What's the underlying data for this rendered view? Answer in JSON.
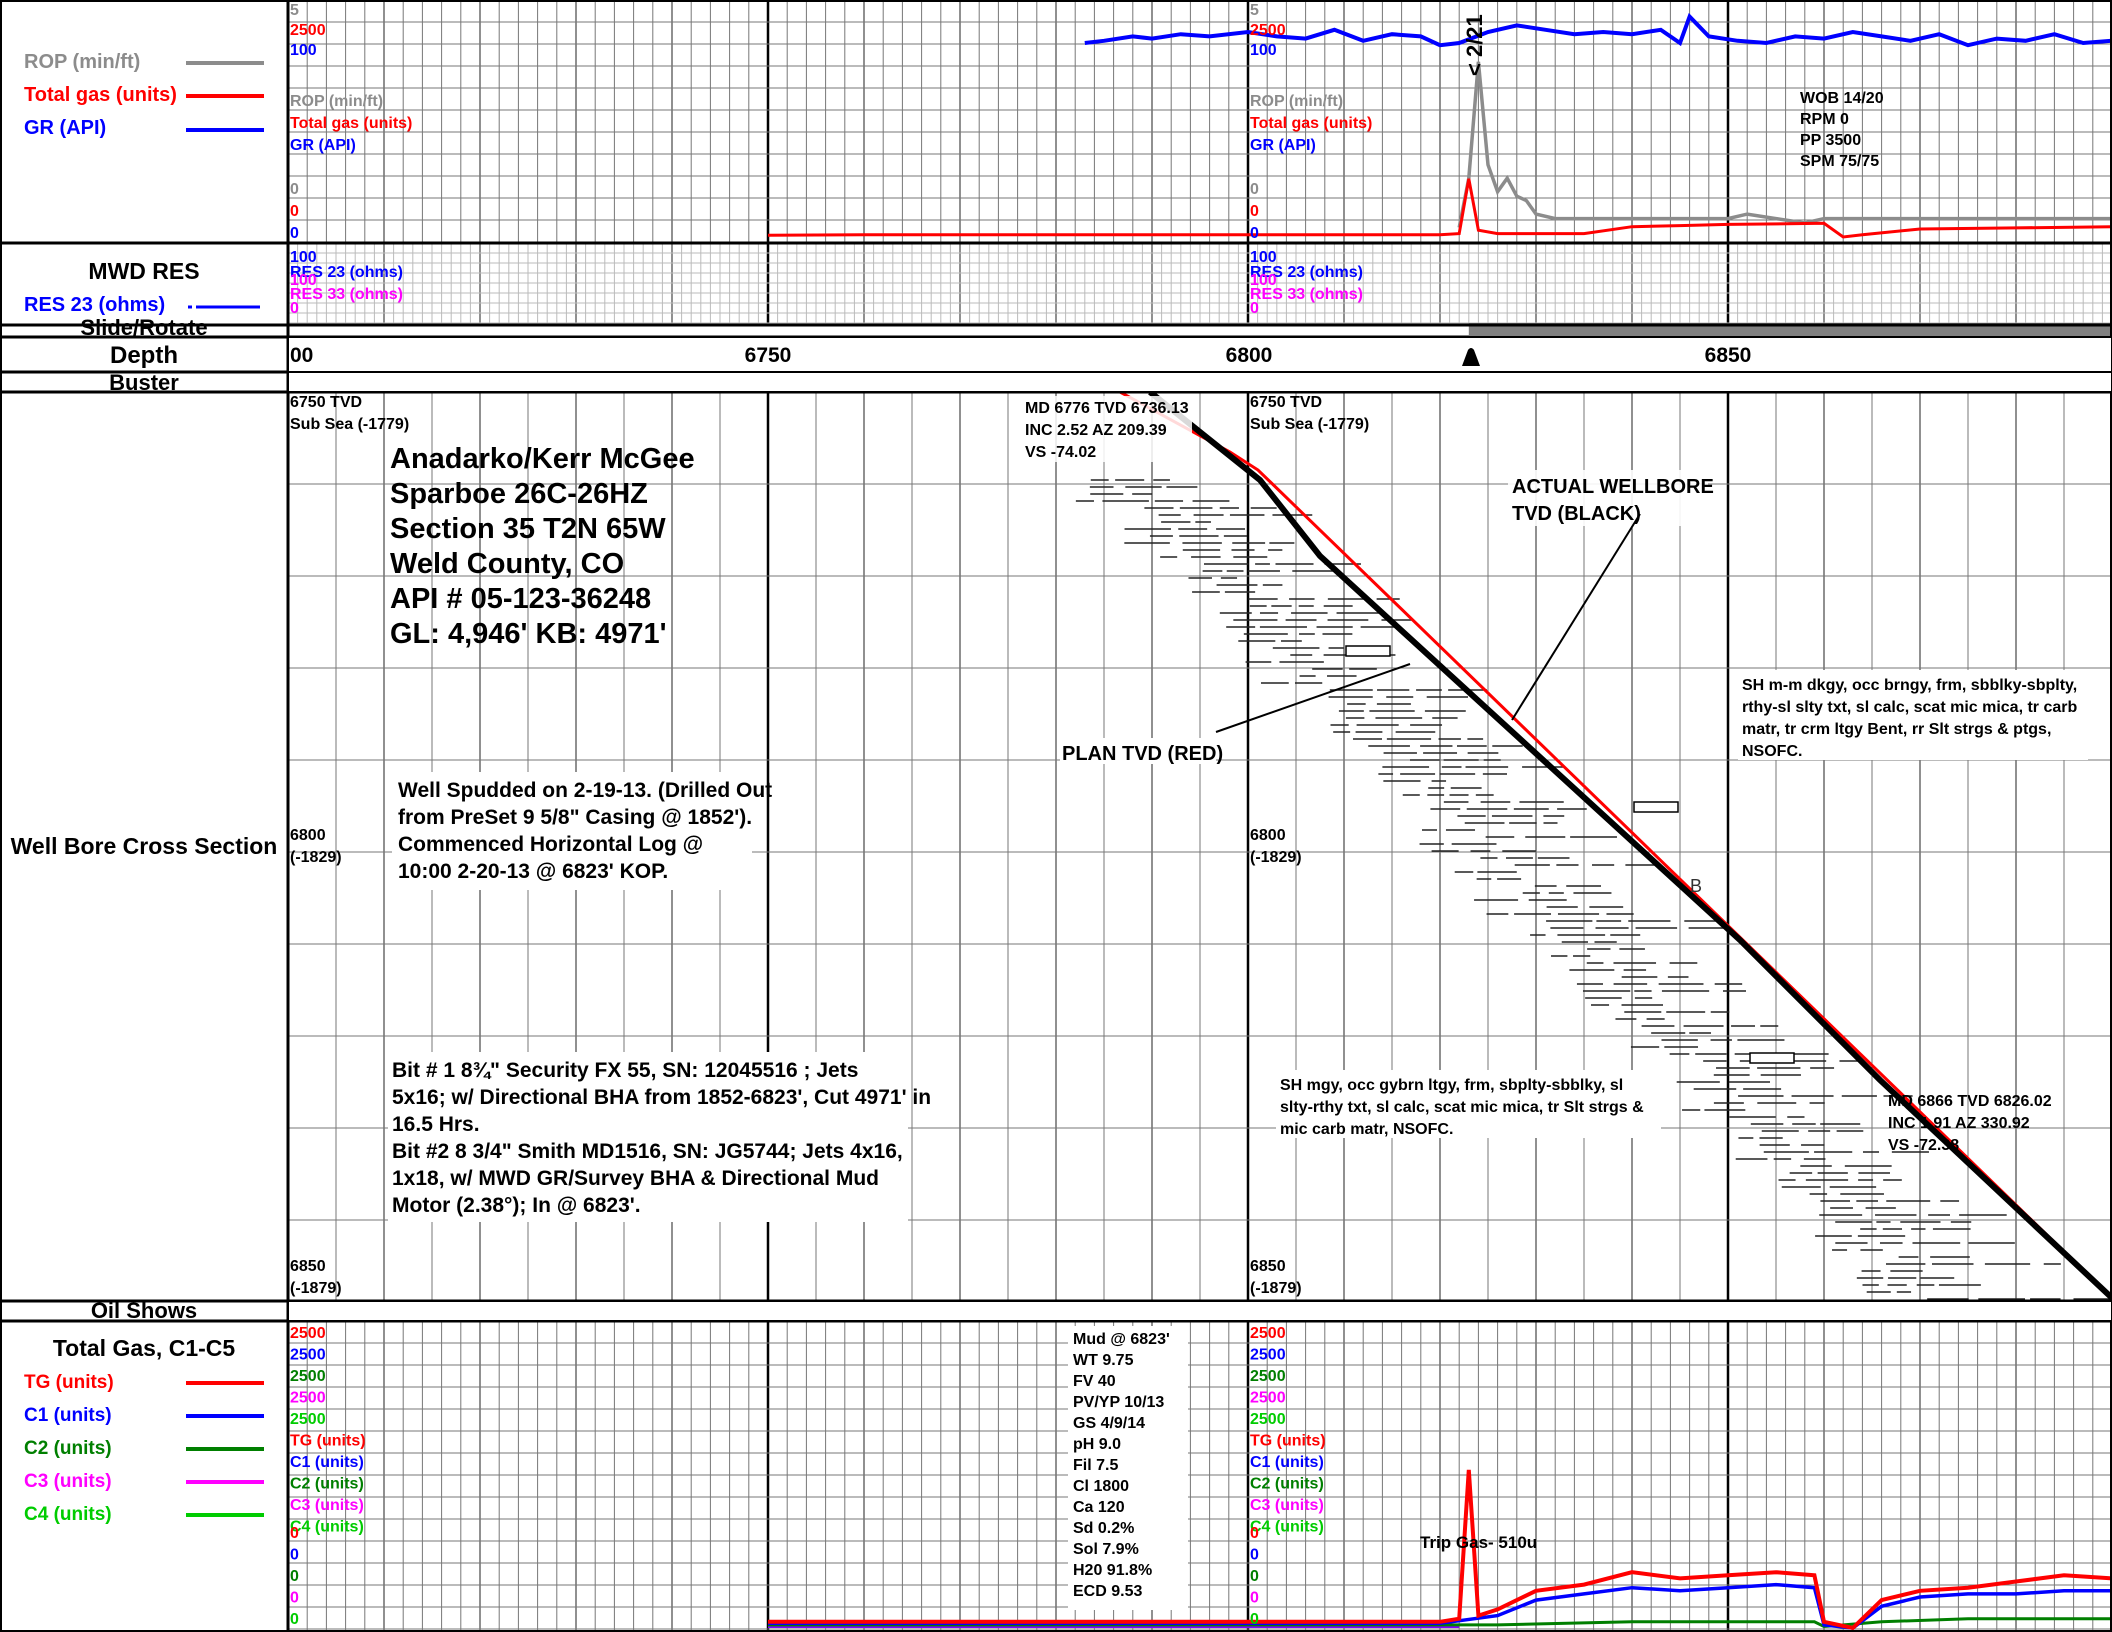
{
  "header_legend": {
    "rop": {
      "label": "ROP (min/ft)",
      "color": "#8c8c8c"
    },
    "total_gas": {
      "label": "Total gas (units)",
      "color": "#ff0000"
    },
    "gr": {
      "label": "GR (API)",
      "color": "#0000ff"
    }
  },
  "mwd": {
    "title": "MWD RES",
    "res_label": "RES 23 (ohms)",
    "res_color": "#0000ff"
  },
  "row_labels": {
    "slide_rotate": "Slide/Rotate",
    "depth": "Depth",
    "buster": "Buster",
    "cross_section": "Well Bore Cross Section",
    "oil_shows": "Oil Shows",
    "total_gas_c1c5": "Total Gas, C1-C5"
  },
  "gas_legend": [
    {
      "label": "TG (units)",
      "color": "#ff0000"
    },
    {
      "label": "C1 (units)",
      "color": "#0000ff"
    },
    {
      "label": "C2 (units)",
      "color": "#007f00"
    },
    {
      "label": "C3 (units)",
      "color": "#ff00ff"
    },
    {
      "label": "C4 (units)",
      "color": "#00cc00"
    }
  ],
  "scale_labels": {
    "top": [
      {
        "t": "5",
        "c": "#8c8c8c"
      },
      {
        "t": "2500",
        "c": "#ff0000"
      },
      {
        "t": "100",
        "c": "#0000ff"
      },
      {
        "t": "ROP (min/ft)",
        "c": "#8c8c8c"
      },
      {
        "t": "Total gas (units)",
        "c": "#ff0000"
      },
      {
        "t": "GR (API)",
        "c": "#0000ff"
      },
      {
        "t": "0",
        "c": "#8c8c8c"
      },
      {
        "t": "0",
        "c": "#ff0000"
      },
      {
        "t": "0",
        "c": "#0000ff"
      }
    ],
    "res": [
      {
        "t": "100",
        "c": "#0000ff"
      },
      {
        "t": "RES 23 (ohms)",
        "c": "#0000ff"
      },
      {
        "t": "100",
        "c": "#ff00ff"
      },
      {
        "t": "RES 33 (ohms)",
        "c": "#ff00ff"
      },
      {
        "t": "0",
        "c": "#ff00ff"
      }
    ],
    "gas_top": [
      {
        "t": "2500",
        "c": "#ff0000"
      },
      {
        "t": "2500",
        "c": "#0000ff"
      },
      {
        "t": "2500",
        "c": "#007f00"
      },
      {
        "t": "2500",
        "c": "#ff00ff"
      },
      {
        "t": "2500",
        "c": "#00cc00"
      },
      {
        "t": "TG (units)",
        "c": "#ff0000"
      },
      {
        "t": "C1 (units)",
        "c": "#0000ff"
      },
      {
        "t": "C2 (units)",
        "c": "#007f00"
      },
      {
        "t": "C3 (units)",
        "c": "#ff00ff"
      },
      {
        "t": "C4 (units)",
        "c": "#00cc00"
      }
    ],
    "gas_zero": [
      {
        "t": "0",
        "c": "#ff0000"
      },
      {
        "t": "0",
        "c": "#0000ff"
      },
      {
        "t": "0",
        "c": "#007f00"
      },
      {
        "t": "0",
        "c": "#ff00ff"
      },
      {
        "t": "0",
        "c": "#00cc00"
      }
    ]
  },
  "depth_ticks": [
    "00",
    "6750",
    "6800",
    "6850"
  ],
  "tvd_labels": {
    "top_left": [
      "6750 TVD",
      "Sub Sea (-1779)"
    ],
    "mid_left": [
      "6800",
      "(-1829)"
    ],
    "bottom_left": [
      "6850",
      "(-1879)"
    ],
    "top_right": [
      "6750 TVD",
      "Sub Sea (-1779)"
    ],
    "mid_right": [
      "6800",
      "(-1829)"
    ],
    "bottom_right": [
      "6850",
      "(-1879)"
    ]
  },
  "well_info": [
    "Anadarko/Kerr McGee",
    "Sparboe 26C-26HZ",
    "Section 35 T2N 65W",
    "Weld County, CO",
    "API # 05-123-36248",
    "GL: 4,946'  KB: 4971'"
  ],
  "spud_note": [
    "Well Spudded on 2-19-13. (Drilled Out",
    "from PreSet 9 5/8\" Casing @ 1852').",
    "Commenced  Horizontal Log @",
    "10:00 2-20-13 @ 6823' KOP."
  ],
  "bit_note": [
    "Bit # 1   8¾\"  Security FX 55, SN: 12045516 ; Jets",
    "5x16; w/ Directional BHA from 1852-6823', Cut 4971' in",
    "16.5 Hrs.",
    "Bit #2   8 3/4\"  Smith MD1516, SN: JG5744; Jets 4x16,",
    "1x18, w/ MWD GR/Survey BHA & Directional Mud",
    "Motor (2.38°);  In @ 6823'."
  ],
  "survey_1": [
    "MD 6776 TVD 6736.13",
    "INC 2.52 AZ 209.39",
    "VS -74.02"
  ],
  "survey_2": [
    "MD 6866 TVD 6826.02",
    "INC 1.91 AZ 330.92",
    "VS -72.38"
  ],
  "annotations": {
    "actual_wellbore": [
      "ACTUAL WELLBORE",
      "TVD  (BLACK)"
    ],
    "plan_tvd": "PLAN TVD (RED)",
    "date_marker": "< 2/21",
    "b_marker": "B",
    "trip_gas": "Trip Gas- 510u"
  },
  "drilling_params": [
    "WOB 14/20",
    "RPM 0",
    "PP 3500",
    "SPM 75/75"
  ],
  "lithology_1": [
    "SH m-m dkgy, occ brngy, frm, sbblky-sbplty,",
    "rthy-sl slty txt, sl calc, scat mic mica, tr carb",
    "matr, tr crm ltgy Bent, rr Slt strgs & ptgs,",
    "NSOFC."
  ],
  "lithology_2": [
    "SH mgy, occ gybrn ltgy, frm, sbplty-sbblky, sl",
    "slty-rthy txt, sl calc, scat mic mica, tr Slt strgs &",
    "mic carb matr, NSOFC."
  ],
  "mud_props": [
    "Mud @ 6823'",
    "WT 9.75",
    "FV 40",
    "PV/YP 10/13",
    "GS 4/9/14",
    "pH 9.0",
    "Fil 7.5",
    "Cl 1800",
    "Ca 120",
    "Sd 0.2%",
    "Sol 7.9%",
    "H20 91.8%",
    "ECD 9.53"
  ],
  "chart_data": {
    "type": "line",
    "x_axis": {
      "label": "Depth",
      "range": [
        6700,
        6890
      ],
      "major_ticks": [
        6750,
        6800,
        6850
      ]
    },
    "gr": {
      "color": "#0000ff",
      "range": [
        0,
        100
      ],
      "x": [
        6783,
        6785,
        6788,
        6790,
        6793,
        6796,
        6800,
        6803,
        6806,
        6809,
        6812,
        6815,
        6818,
        6820,
        6822,
        6825,
        6828,
        6831,
        6834,
        6837,
        6840,
        6843,
        6845,
        6846,
        6848,
        6851,
        6854,
        6857,
        6860,
        6863,
        6866,
        6869,
        6872,
        6875,
        6878,
        6881,
        6884,
        6887,
        6890
      ],
      "y": [
        85,
        86,
        88,
        87,
        89,
        88,
        90,
        88,
        87,
        91,
        86,
        89,
        88,
        84,
        85,
        90,
        93,
        91,
        89,
        90,
        89,
        91,
        85,
        97,
        88,
        86,
        85,
        88,
        87,
        90,
        88,
        86,
        89,
        84,
        87,
        86,
        89,
        85,
        86
      ]
    },
    "rop": {
      "color": "#8c8c8c",
      "range": [
        0,
        5
      ],
      "x": [
        6822,
        6823,
        6824,
        6825,
        6826,
        6827,
        6828,
        6829,
        6830,
        6832,
        6835,
        6840,
        6845,
        6850,
        6852,
        6855,
        6858,
        6860,
        6865,
        6870,
        6875,
        6880,
        6885,
        6890
      ],
      "y": [
        0.1,
        1.2,
        3.8,
        1.5,
        0.9,
        1.2,
        0.8,
        0.7,
        0.4,
        0.3,
        0.3,
        0.3,
        0.3,
        0.3,
        0.4,
        0.3,
        0.2,
        0.3,
        0.3,
        0.3,
        0.3,
        0.3,
        0.3,
        0.3
      ]
    },
    "total_gas_track": {
      "color": "#ff0000",
      "range": [
        0,
        2500
      ],
      "x": [
        6750,
        6760,
        6780,
        6800,
        6812,
        6820,
        6822,
        6823,
        6824,
        6826,
        6830,
        6835,
        6840,
        6845,
        6850,
        6860,
        6862,
        6864,
        6870,
        6880,
        6890
      ],
      "y": [
        15,
        20,
        20,
        20,
        20,
        20,
        30,
        510,
        60,
        30,
        30,
        30,
        90,
        100,
        110,
        120,
        0,
        20,
        70,
        80,
        90
      ]
    },
    "gas_tg": {
      "color": "#ff0000",
      "range": [
        0,
        2500
      ],
      "x": [
        6750,
        6800,
        6820,
        6822,
        6823,
        6824,
        6826,
        6830,
        6835,
        6840,
        6845,
        6850,
        6855,
        6859,
        6860,
        6863,
        6866,
        6870,
        6875,
        6880,
        6885,
        6890
      ],
      "y": [
        20,
        20,
        20,
        30,
        510,
        40,
        60,
        120,
        140,
        180,
        160,
        170,
        180,
        170,
        20,
        0,
        90,
        120,
        130,
        150,
        170,
        160
      ]
    },
    "gas_c1": {
      "color": "#0000ff",
      "range": [
        0,
        2500
      ],
      "x": [
        6750,
        6800,
        6820,
        6826,
        6830,
        6835,
        6840,
        6845,
        6850,
        6855,
        6859,
        6860,
        6863,
        6866,
        6870,
        6875,
        6880,
        6885,
        6890
      ],
      "y": [
        15,
        15,
        15,
        40,
        90,
        110,
        130,
        120,
        130,
        140,
        130,
        10,
        0,
        70,
        100,
        110,
        110,
        120,
        120
      ]
    },
    "gas_c2": {
      "color": "#007f00",
      "range": [
        0,
        2500
      ],
      "x": [
        6750,
        6800,
        6826,
        6840,
        6850,
        6859,
        6860,
        6866,
        6875,
        6890
      ],
      "y": [
        10,
        10,
        10,
        20,
        20,
        20,
        5,
        20,
        30,
        30
      ]
    },
    "gas_purple": {
      "color": "#7f00ff",
      "range": [
        0,
        2500
      ],
      "x": [
        6750,
        6822
      ],
      "y": [
        20,
        20
      ]
    },
    "slide_bar": {
      "x_start": 6823,
      "x_end": 6890,
      "color": "#808080"
    },
    "well_path": {
      "tvd_axis": [
        6740,
        6855
      ],
      "actual": {
        "color": "#000000",
        "x": [
          6785,
          6890
        ],
        "tvd": [
          6736.1,
          6826.0
        ]
      },
      "plan": {
        "color": "#ff0000",
        "x": [
          6783,
          6890
        ],
        "tvd": [
          6736.1,
          6826.0
        ]
      }
    }
  }
}
